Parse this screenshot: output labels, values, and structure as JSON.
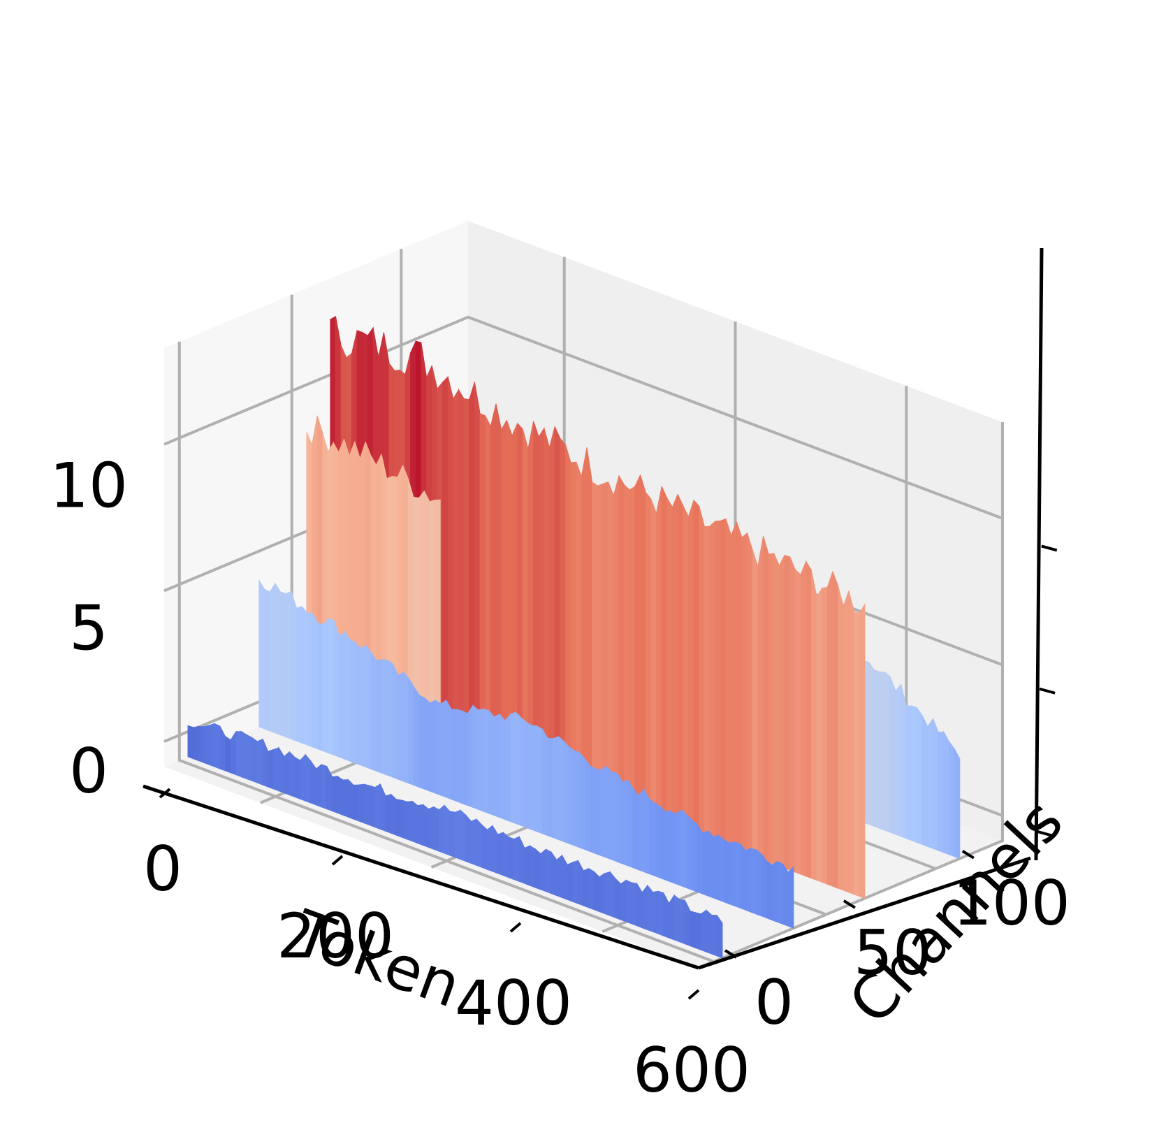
{
  "chart_data": {
    "type": "surface3d",
    "colormap": "coolwarm",
    "colormap_colors": [
      "#3b4cc0",
      "#6f92f3",
      "#aac7fd",
      "#dddcdc",
      "#f7b89c",
      "#e7745b",
      "#b40426"
    ],
    "xlabel": "Token",
    "ylabel": "Channels",
    "zlabel": "",
    "x_ticks": [
      0,
      200,
      400,
      600
    ],
    "y_ticks": [
      0,
      50,
      100
    ],
    "z_ticks": [
      0,
      5,
      10
    ],
    "xlim": [
      0,
      600
    ],
    "ylim": [
      0,
      128
    ],
    "zlim": [
      0,
      14
    ],
    "grid": true,
    "series": [
      {
        "channel": 10,
        "x": [
          0,
          100,
          200,
          300,
          400,
          500,
          600
        ],
        "z": [
          1.2,
          1.4,
          1.3,
          1.5,
          1.3,
          1.4,
          1.2
        ]
      },
      {
        "channel": 40,
        "x": [
          0,
          100,
          200,
          300,
          400,
          500,
          600
        ],
        "z": [
          5.0,
          4.2,
          3.0,
          3.6,
          2.8,
          2.2,
          2.0
        ]
      },
      {
        "channel": 60,
        "x": [
          0,
          60,
          120,
          150
        ],
        "z": [
          9.4,
          9.2,
          8.8,
          8.6
        ]
      },
      {
        "channel": 70,
        "x": [
          0,
          100,
          200,
          300,
          400,
          500,
          600
        ],
        "z": [
          12.2,
          12.5,
          11.6,
          11.0,
          10.6,
          10.2,
          9.8
        ]
      },
      {
        "channel": 110,
        "x": [
          0,
          100,
          200,
          300,
          400,
          500,
          600
        ],
        "z": [
          3.0,
          3.4,
          4.5,
          5.8,
          6.0,
          5.5,
          3.5
        ]
      }
    ]
  }
}
